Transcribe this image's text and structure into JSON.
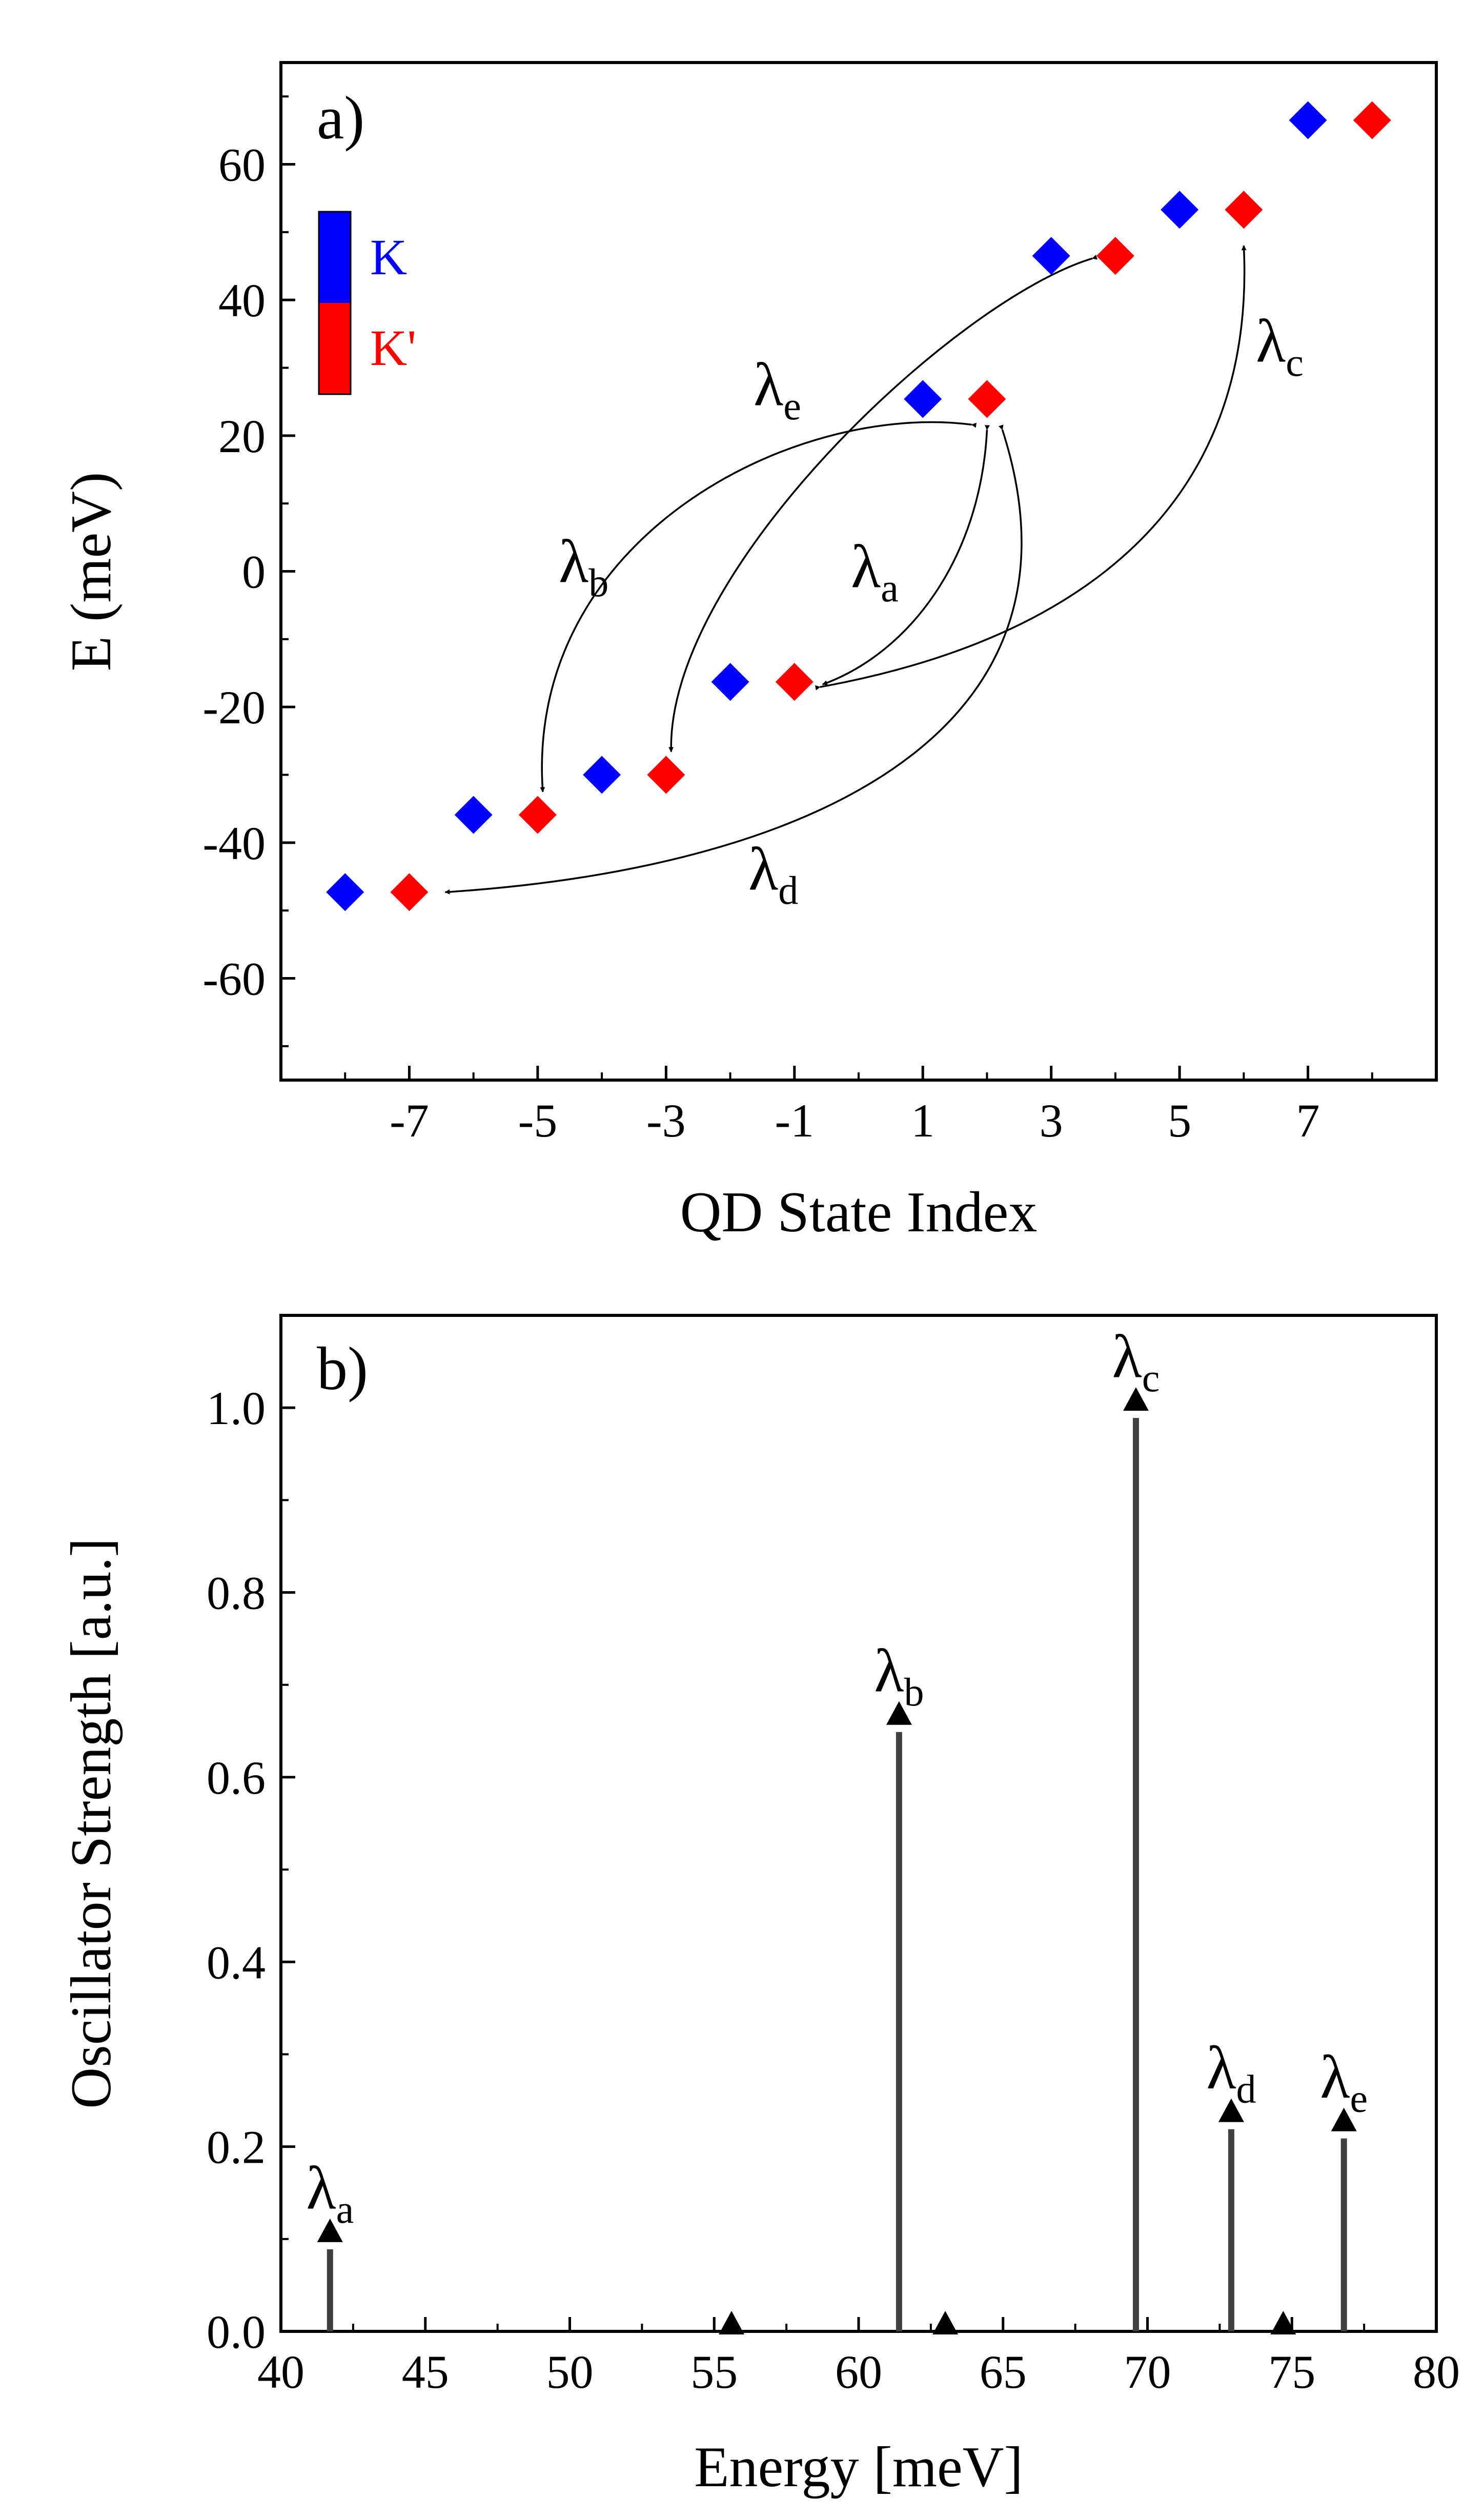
{
  "chart_data": [
    {
      "panel": "a)",
      "type": "scatter",
      "xlabel": "QD State Index",
      "ylabel": "E (meV)",
      "xlim": [
        -9,
        9
      ],
      "ylim": [
        -75,
        75
      ],
      "xticks": [
        -7,
        -5,
        -3,
        -1,
        1,
        3,
        5,
        7
      ],
      "yticks": [
        -60,
        -40,
        -20,
        0,
        20,
        40,
        60
      ],
      "legend": [
        {
          "label": "K",
          "color": "#0000ff"
        },
        {
          "label": "K'",
          "color": "#ff0000"
        }
      ],
      "series": [
        {
          "name": "K",
          "color": "#0000ff",
          "x": [
            -8,
            -6,
            -4,
            -2,
            1,
            3,
            5,
            7
          ],
          "y": [
            -47.3,
            -35.9,
            -30.0,
            -16.3,
            25.4,
            46.5,
            53.3,
            66.5
          ]
        },
        {
          "name": "K'",
          "color": "#ff0000",
          "x": [
            -7,
            -5,
            -3,
            -1,
            2,
            4,
            6,
            8
          ],
          "y": [
            -47.3,
            -35.9,
            -30.0,
            -16.3,
            25.4,
            46.5,
            53.3,
            66.5
          ]
        }
      ],
      "transitions": [
        {
          "label": "λ",
          "sub": "a",
          "from": [
            2,
            25.4
          ],
          "to": [
            -1,
            -16.3
          ]
        },
        {
          "label": "λ",
          "sub": "b",
          "from": [
            2,
            25.4
          ],
          "to": [
            -5,
            -35.9
          ]
        },
        {
          "label": "λ",
          "sub": "c",
          "from": [
            -1,
            -16.3
          ],
          "to": [
            6,
            53.3
          ]
        },
        {
          "label": "λ",
          "sub": "d",
          "from": [
            2,
            25.4
          ],
          "to": [
            -7,
            -47.3
          ]
        },
        {
          "label": "λ",
          "sub": "e",
          "from": [
            4,
            46.5
          ],
          "to": [
            -3,
            -30.0
          ]
        }
      ]
    },
    {
      "panel": "b)",
      "type": "bar",
      "xlabel": "Energy [meV]",
      "ylabel": "Oscillator Strength [a.u.]",
      "xlim": [
        40,
        80
      ],
      "ylim": [
        0,
        1.1
      ],
      "xticks": [
        40,
        45,
        50,
        55,
        60,
        65,
        70,
        75,
        80
      ],
      "yticks": [
        "0.0",
        "0.2",
        "0.4",
        "0.6",
        "0.8",
        "1.0"
      ],
      "x": [
        41.7,
        55.6,
        61.4,
        63.0,
        69.6,
        72.9,
        74.7,
        76.8
      ],
      "values": [
        0.1,
        0.0,
        0.66,
        0.0,
        1.0,
        0.23,
        0.0,
        0.22
      ],
      "annotations": [
        {
          "label": "λ",
          "sub": "a",
          "x": 41.7,
          "value": 0.1
        },
        {
          "label": "λ",
          "sub": "b",
          "x": 61.4,
          "value": 0.66
        },
        {
          "label": "λ",
          "sub": "c",
          "x": 69.6,
          "value": 1.0
        },
        {
          "label": "λ",
          "sub": "d",
          "x": 72.9,
          "value": 0.23
        },
        {
          "label": "λ",
          "sub": "e",
          "x": 76.8,
          "value": 0.22
        }
      ]
    }
  ]
}
